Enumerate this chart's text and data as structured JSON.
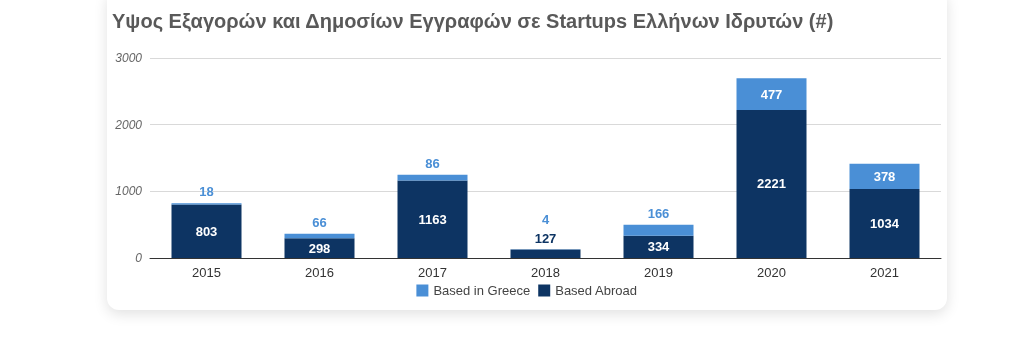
{
  "chart_data": {
    "type": "bar",
    "title": "Υψος Εξαγορών και Δημοσίων Εγγραφών σε Startups Ελλήνων Ιδρυτών (#)",
    "categories": [
      "2015",
      "2016",
      "2017",
      "2018",
      "2019",
      "2020",
      "2021"
    ],
    "series": [
      {
        "name": "Based Abroad",
        "color": "#0d3463",
        "values": [
          803,
          298,
          1163,
          127,
          334,
          2221,
          1034
        ]
      },
      {
        "name": "Based in Greece",
        "color": "#4a8fd6",
        "values": [
          18,
          66,
          86,
          4,
          166,
          477,
          378
        ]
      }
    ],
    "stacked": true,
    "ylim": [
      0,
      3000
    ],
    "yticks": [
      0,
      1000,
      2000,
      3000
    ],
    "grid": "y",
    "legend": "bottom",
    "data_labels": true
  }
}
